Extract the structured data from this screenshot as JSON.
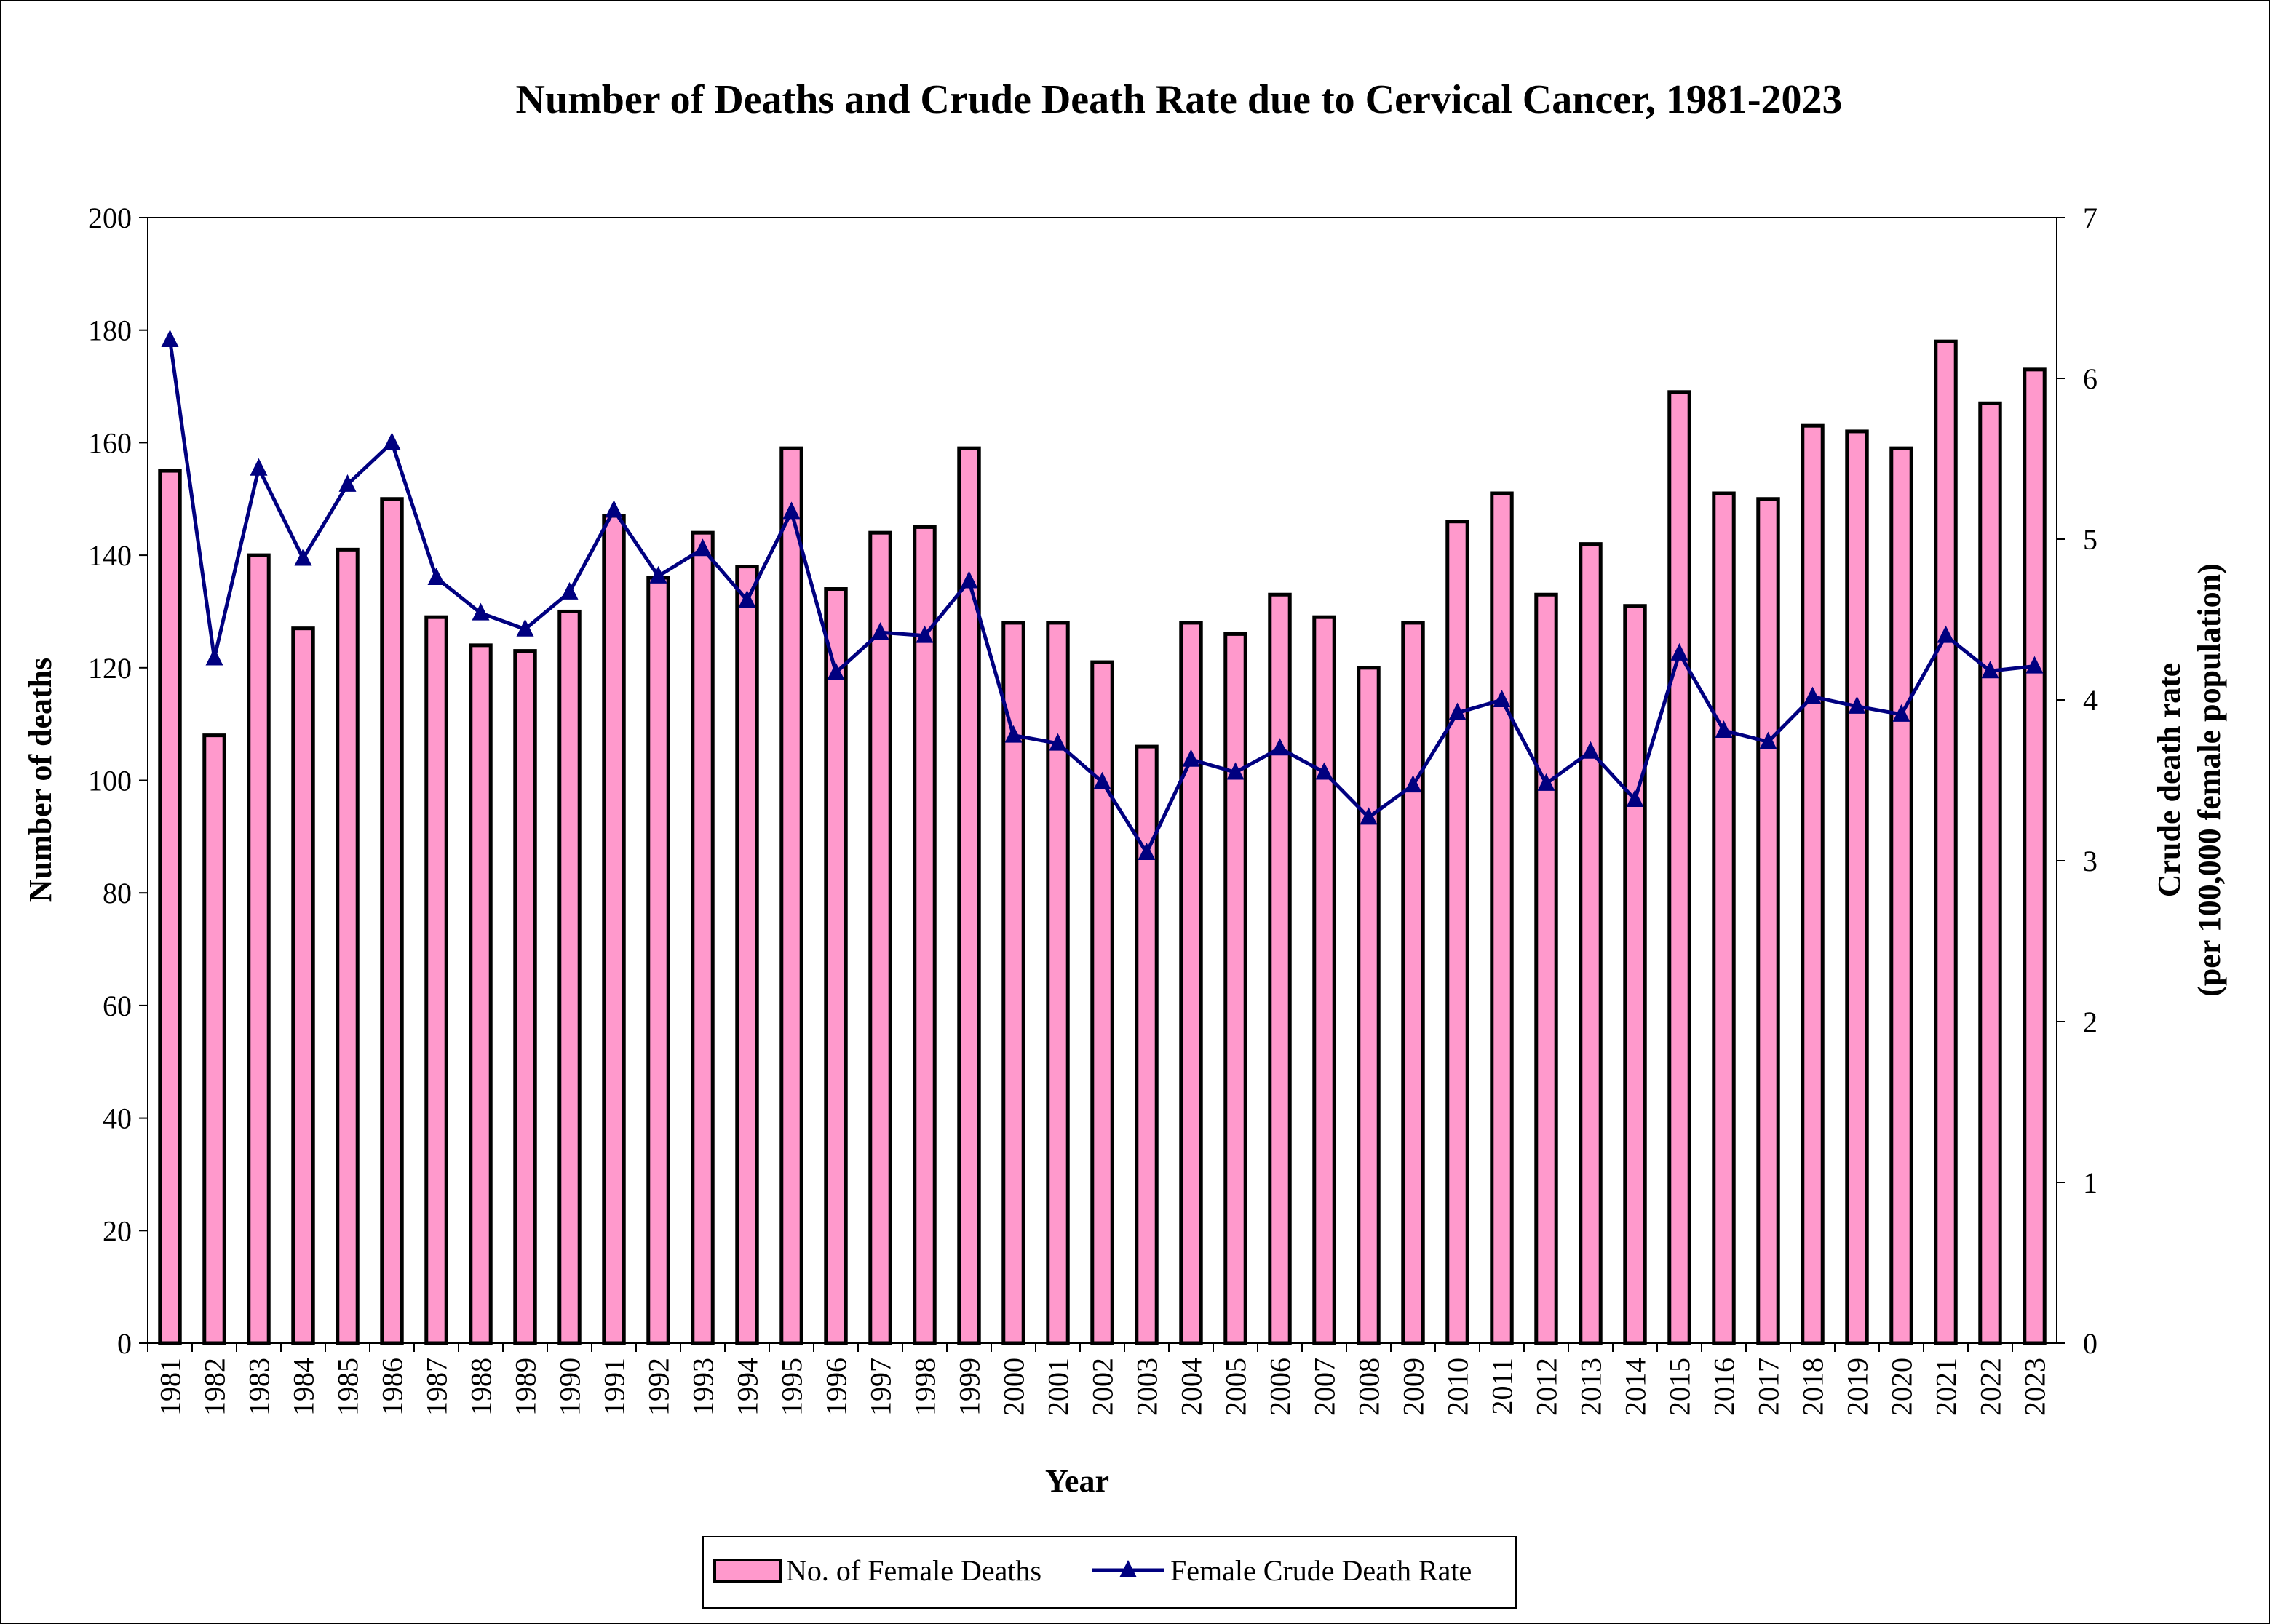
{
  "chart_data": {
    "type": "bar+line",
    "title": "Number of Deaths and Crude Death Rate due to Cervical Cancer, 1981-2023",
    "xlabel": "Year",
    "ylabel": "Number of deaths",
    "y2label_line1": "Crude death rate",
    "y2label_line2": "(per 100,000 female population)",
    "ylim": [
      0,
      200
    ],
    "yticks": [
      0,
      20,
      40,
      60,
      80,
      100,
      120,
      140,
      160,
      180,
      200
    ],
    "y2lim": [
      0,
      7
    ],
    "y2ticks": [
      0,
      1,
      2,
      3,
      4,
      5,
      6,
      7
    ],
    "grid": false,
    "legend_position": "bottom",
    "categories": [
      "1981",
      "1982",
      "1983",
      "1984",
      "1985",
      "1986",
      "1987",
      "1988",
      "1989",
      "1990",
      "1991",
      "1992",
      "1993",
      "1994",
      "1995",
      "1996",
      "1997",
      "1998",
      "1999",
      "2000",
      "2001",
      "2002",
      "2003",
      "2004",
      "2005",
      "2006",
      "2007",
      "2008",
      "2009",
      "2010",
      "2011",
      "2012",
      "2013",
      "2014",
      "2015",
      "2016",
      "2017",
      "2018",
      "2019",
      "2020",
      "2021",
      "2022",
      "2023"
    ],
    "series": [
      {
        "name": "No. of Female Deaths",
        "type": "bar",
        "axis": "left",
        "color": "#FF99CC",
        "values": [
          155,
          108,
          140,
          127,
          141,
          150,
          129,
          124,
          123,
          130,
          147,
          136,
          144,
          138,
          159,
          134,
          144,
          145,
          159,
          128,
          128,
          121,
          106,
          128,
          126,
          133,
          129,
          120,
          128,
          146,
          151,
          133,
          142,
          131,
          169,
          151,
          150,
          163,
          162,
          159,
          178,
          167,
          173
        ]
      },
      {
        "name": "Female Crude Death Rate",
        "type": "line",
        "axis": "right",
        "color": "#000080",
        "marker": "triangle",
        "values": [
          6.24,
          4.26,
          5.44,
          4.88,
          5.34,
          5.6,
          4.76,
          4.54,
          4.44,
          4.67,
          5.18,
          4.77,
          4.94,
          4.62,
          5.17,
          4.17,
          4.42,
          4.4,
          4.74,
          3.78,
          3.73,
          3.49,
          3.05,
          3.63,
          3.55,
          3.7,
          3.55,
          3.27,
          3.47,
          3.92,
          4.0,
          3.48,
          3.68,
          3.38,
          4.29,
          3.81,
          3.74,
          4.02,
          3.96,
          3.91,
          4.4,
          4.18,
          4.21
        ]
      }
    ]
  }
}
